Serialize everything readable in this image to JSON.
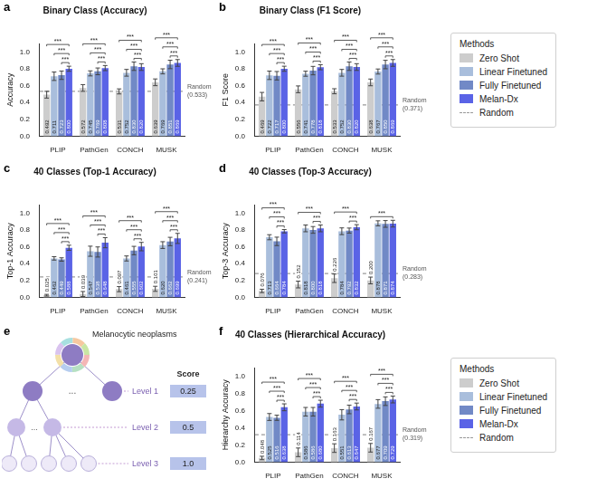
{
  "chart_data": [
    {
      "panel": "a",
      "type": "bar",
      "title": "Binary Class (Accuracy)",
      "y_label": "Accuracy",
      "categories": [
        "PLIP",
        "PathGen",
        "CONCH",
        "MUSK"
      ],
      "series": [
        {
          "name": "Zero Shot",
          "color": "#cdcdcd",
          "values": [
            0.492,
            0.572,
            0.531,
            0.639
          ],
          "errors": [
            0.04,
            0.04,
            0.03,
            0.04
          ],
          "value_labels": [
            "0.492",
            "0.572",
            "0.531",
            "0.639"
          ]
        },
        {
          "name": "Linear Finetuned",
          "color": "#a9bedc",
          "values": [
            0.711,
            0.745,
            0.752,
            0.769
          ],
          "errors": [
            0.05,
            0.03,
            0.04,
            0.03
          ],
          "value_labels": [
            "0.711",
            "0.745",
            "0.752",
            "0.769"
          ]
        },
        {
          "name": "Fully Finetuned",
          "color": "#7189c6",
          "values": [
            0.723,
            0.769,
            0.83,
            0.851
          ],
          "errors": [
            0.05,
            0.04,
            0.05,
            0.05
          ],
          "value_labels": [
            "0.723",
            "0.769",
            "0.830",
            "0.851"
          ]
        },
        {
          "name": "Melan-Dx",
          "color": "#5a63e6",
          "values": [
            0.8,
            0.808,
            0.82,
            0.869
          ],
          "errors": [
            0.03,
            0.03,
            0.04,
            0.04
          ],
          "value_labels": [
            "0.800",
            "0.808",
            "0.820",
            "0.869"
          ]
        }
      ],
      "reference_line": {
        "name": "Random",
        "value": 0.533,
        "label": "(0.533)",
        "color": "#999999",
        "line_style": "dashed"
      },
      "significance": {
        "label": "***",
        "brackets": {
          "PLIP": [
            [
              "Zero Shot",
              "Melan-Dx"
            ],
            [
              "Linear Finetuned",
              "Melan-Dx"
            ],
            [
              "Fully Finetuned",
              "Melan-Dx"
            ]
          ],
          "PathGen": [
            [
              "Zero Shot",
              "Melan-Dx"
            ],
            [
              "Linear Finetuned",
              "Melan-Dx"
            ],
            [
              "Fully Finetuned",
              "Melan-Dx"
            ]
          ],
          "CONCH": [
            [
              "Zero Shot",
              "Melan-Dx"
            ],
            [
              "Linear Finetuned",
              "Melan-Dx"
            ],
            [
              "Fully Finetuned",
              "Melan-Dx"
            ]
          ],
          "MUSK": [
            [
              "Zero Shot",
              "Melan-Dx"
            ],
            [
              "Linear Finetuned",
              "Melan-Dx"
            ],
            [
              "Fully Finetuned",
              "Melan-Dx"
            ]
          ]
        }
      },
      "ylim": [
        0,
        1.1
      ],
      "yticks": [
        {
          "value": 0,
          "label": "0.0"
        },
        {
          "value": 0.2,
          "label": "0.2"
        },
        {
          "value": 0.4,
          "label": "0.4"
        },
        {
          "value": 0.6,
          "label": "0.6"
        },
        {
          "value": 0.8,
          "label": "0.8"
        },
        {
          "value": 1,
          "label": "1.0"
        }
      ],
      "grid": false,
      "data_labels": true
    },
    {
      "panel": "b",
      "type": "bar",
      "title": "Binary Class (F1 Score)",
      "y_label": "F1 Score",
      "categories": [
        "PLIP",
        "PathGen",
        "CONCH",
        "MUSK"
      ],
      "series": [
        {
          "name": "Zero Shot",
          "color": "#cdcdcd",
          "values": [
            0.469,
            0.556,
            0.533,
            0.638
          ],
          "errors": [
            0.05,
            0.04,
            0.03,
            0.04
          ],
          "value_labels": [
            "0.469",
            "0.556",
            "0.533",
            "0.638"
          ]
        },
        {
          "name": "Linear Finetuned",
          "color": "#a9bedc",
          "values": [
            0.722,
            0.741,
            0.752,
            0.767
          ],
          "errors": [
            0.05,
            0.03,
            0.04,
            0.03
          ],
          "value_labels": [
            "0.722",
            "0.741",
            "0.752",
            "0.767"
          ]
        },
        {
          "name": "Fully Finetuned",
          "color": "#7189c6",
          "values": [
            0.717,
            0.778,
            0.83,
            0.85
          ],
          "errors": [
            0.05,
            0.05,
            0.05,
            0.05
          ],
          "value_labels": [
            "0.717",
            "0.778",
            "0.830",
            "0.850"
          ]
        },
        {
          "name": "Melan-Dx",
          "color": "#5a63e6",
          "values": [
            0.8,
            0.818,
            0.82,
            0.869
          ],
          "errors": [
            0.03,
            0.03,
            0.04,
            0.04
          ],
          "value_labels": [
            "0.800",
            "0.818",
            "0.820",
            "0.869"
          ]
        }
      ],
      "reference_line": {
        "name": "Random",
        "value": 0.371,
        "label": "(0.371)",
        "color": "#999999",
        "line_style": "dashed"
      },
      "significance": {
        "label": "***",
        "brackets": {
          "PLIP": [
            [
              "Zero Shot",
              "Melan-Dx"
            ],
            [
              "Linear Finetuned",
              "Melan-Dx"
            ],
            [
              "Fully Finetuned",
              "Melan-Dx"
            ]
          ],
          "PathGen": [
            [
              "Zero Shot",
              "Melan-Dx"
            ],
            [
              "Linear Finetuned",
              "Melan-Dx"
            ],
            [
              "Fully Finetuned",
              "Melan-Dx"
            ]
          ],
          "CONCH": [
            [
              "Zero Shot",
              "Melan-Dx"
            ],
            [
              "Linear Finetuned",
              "Melan-Dx"
            ],
            [
              "Fully Finetuned",
              "Melan-Dx"
            ]
          ],
          "MUSK": [
            [
              "Zero Shot",
              "Melan-Dx"
            ],
            [
              "Linear Finetuned",
              "Melan-Dx"
            ],
            [
              "Fully Finetuned",
              "Melan-Dx"
            ]
          ]
        }
      },
      "ylim": [
        0,
        1.1
      ],
      "yticks": [
        {
          "value": 0,
          "label": "0.0"
        },
        {
          "value": 0.2,
          "label": "0.2"
        },
        {
          "value": 0.4,
          "label": "0.4"
        },
        {
          "value": 0.6,
          "label": "0.6"
        },
        {
          "value": 0.8,
          "label": "0.8"
        },
        {
          "value": 1,
          "label": "1.0"
        }
      ],
      "grid": false,
      "data_labels": true,
      "legend": "right",
      "legend_title": "Methods"
    },
    {
      "panel": "c",
      "type": "bar",
      "title": "40 Classes (Top-1 Accuracy)",
      "y_label": "Top-1 Accuracy",
      "categories": [
        "PLIP",
        "PathGen",
        "CONCH",
        "MUSK"
      ],
      "series": [
        {
          "name": "Zero Shot",
          "color": "#cdcdcd",
          "values": [
            0.025,
            0.039,
            0.097,
            0.101
          ],
          "errors": [
            0.01,
            0.03,
            0.03,
            0.03
          ],
          "value_labels": [
            "0.025",
            "0.039",
            "0.097",
            "0.101"
          ]
        },
        {
          "name": "Linear Finetuned",
          "color": "#a9bedc",
          "values": [
            0.462,
            0.547,
            0.461,
            0.62
          ],
          "errors": [
            0.02,
            0.06,
            0.03,
            0.04
          ],
          "value_labels": [
            "0.462",
            "0.547",
            "0.461",
            "0.620"
          ]
        },
        {
          "name": "Fully Finetuned",
          "color": "#7189c6",
          "values": [
            0.449,
            0.538,
            0.555,
            0.662
          ],
          "errors": [
            0.02,
            0.06,
            0.05,
            0.05
          ],
          "value_labels": [
            "0.449",
            "0.538",
            "0.555",
            "0.662"
          ]
        },
        {
          "name": "Melan-Dx",
          "color": "#5a63e6",
          "values": [
            0.588,
            0.648,
            0.602,
            0.699
          ],
          "errors": [
            0.03,
            0.06,
            0.05,
            0.06
          ],
          "value_labels": [
            "0.588",
            "0.648",
            "0.602",
            "0.699"
          ]
        }
      ],
      "reference_line": {
        "name": "Random",
        "value": 0.241,
        "label": "(0.241)",
        "color": "#999999",
        "line_style": "dashed"
      },
      "significance": {
        "label": "***",
        "brackets": {
          "PLIP": [
            [
              "Zero Shot",
              "Melan-Dx"
            ],
            [
              "Linear Finetuned",
              "Melan-Dx"
            ],
            [
              "Fully Finetuned",
              "Melan-Dx"
            ]
          ],
          "PathGen": [
            [
              "Zero Shot",
              "Melan-Dx"
            ],
            [
              "Linear Finetuned",
              "Melan-Dx"
            ],
            [
              "Fully Finetuned",
              "Melan-Dx"
            ]
          ],
          "CONCH": [
            [
              "Zero Shot",
              "Melan-Dx"
            ],
            [
              "Linear Finetuned",
              "Melan-Dx"
            ],
            [
              "Fully Finetuned",
              "Melan-Dx"
            ]
          ],
          "MUSK": [
            [
              "Zero Shot",
              "Melan-Dx"
            ],
            [
              "Linear Finetuned",
              "Melan-Dx"
            ],
            [
              "Fully Finetuned",
              "Melan-Dx"
            ]
          ]
        }
      },
      "ylim": [
        0,
        1.1
      ],
      "yticks": [
        {
          "value": 0,
          "label": "0.0"
        },
        {
          "value": 0.2,
          "label": "0.2"
        },
        {
          "value": 0.4,
          "label": "0.4"
        },
        {
          "value": 0.6,
          "label": "0.6"
        },
        {
          "value": 0.8,
          "label": "0.8"
        },
        {
          "value": 1,
          "label": "1.0"
        }
      ],
      "grid": false,
      "data_labels": true
    },
    {
      "panel": "d",
      "type": "bar",
      "title": "40 Classes (Top-3 Accuracy)",
      "y_label": "Top-3 Accuracy",
      "categories": [
        "PLIP",
        "PathGen",
        "CONCH",
        "MUSK"
      ],
      "series": [
        {
          "name": "Zero Shot",
          "color": "#cdcdcd",
          "values": [
            0.076,
            0.152,
            0.226,
            0.2
          ],
          "errors": [
            0.02,
            0.04,
            0.05,
            0.04
          ],
          "value_labels": [
            "0.076",
            "0.152",
            "0.226",
            "0.200"
          ]
        },
        {
          "name": "Linear Finetuned",
          "color": "#a9bedc",
          "values": [
            0.713,
            0.818,
            0.784,
            0.878
          ],
          "errors": [
            0.03,
            0.04,
            0.04,
            0.03
          ],
          "value_labels": [
            "0.713",
            "0.818",
            "0.784",
            "0.878"
          ]
        },
        {
          "name": "Fully Finetuned",
          "color": "#7189c6",
          "values": [
            0.664,
            0.8,
            0.792,
            0.871
          ],
          "errors": [
            0.05,
            0.04,
            0.03,
            0.04
          ],
          "value_labels": [
            "0.664",
            "0.800",
            "0.792",
            "0.871"
          ]
        },
        {
          "name": "Melan-Dx",
          "color": "#5a63e6",
          "values": [
            0.784,
            0.818,
            0.832,
            0.874
          ],
          "errors": [
            0.02,
            0.04,
            0.03,
            0.04
          ],
          "value_labels": [
            "0.784",
            "0.818",
            "0.832",
            "0.874"
          ]
        }
      ],
      "reference_line": {
        "name": "Random",
        "value": 0.283,
        "label": "(0.283)",
        "color": "#999999",
        "line_style": "dashed"
      },
      "significance": {
        "label": "***",
        "brackets": {
          "PLIP": [
            [
              "Zero Shot",
              "Melan-Dx"
            ],
            [
              "Linear Finetuned",
              "Melan-Dx"
            ],
            [
              "Fully Finetuned",
              "Melan-Dx"
            ]
          ],
          "PathGen": [
            [
              "Zero Shot",
              "Melan-Dx"
            ],
            [
              "Fully Finetuned",
              "Melan-Dx"
            ]
          ],
          "CONCH": [
            [
              "Zero Shot",
              "Melan-Dx"
            ],
            [
              "Fully Finetuned",
              "Melan-Dx"
            ]
          ],
          "MUSK": [
            [
              "Zero Shot",
              "Melan-Dx"
            ]
          ]
        }
      },
      "ylim": [
        0,
        1.1
      ],
      "yticks": [
        {
          "value": 0,
          "label": "0.0"
        },
        {
          "value": 0.2,
          "label": "0.2"
        },
        {
          "value": 0.4,
          "label": "0.4"
        },
        {
          "value": 0.6,
          "label": "0.6"
        },
        {
          "value": 0.8,
          "label": "0.8"
        },
        {
          "value": 1,
          "label": "1.0"
        }
      ],
      "grid": false,
      "data_labels": true
    },
    {
      "panel": "f",
      "type": "bar",
      "title": "40 Classes (Hierarchical Accuracy)",
      "y_label": "Hierarchy Accuracy",
      "categories": [
        "PLIP",
        "PathGen",
        "CONCH",
        "MUSK"
      ],
      "series": [
        {
          "name": "Zero Shot",
          "color": "#cdcdcd",
          "values": [
            0.048,
            0.114,
            0.163,
            0.167
          ],
          "errors": [
            0.02,
            0.05,
            0.05,
            0.05
          ],
          "value_labels": [
            "0.048",
            "0.114",
            "0.163",
            "0.167"
          ]
        },
        {
          "name": "Linear Finetuned",
          "color": "#a9bedc",
          "values": [
            0.525,
            0.586,
            0.551,
            0.677
          ],
          "errors": [
            0.04,
            0.05,
            0.06,
            0.05
          ],
          "value_labels": [
            "0.525",
            "0.586",
            "0.551",
            "0.677"
          ]
        },
        {
          "name": "Fully Finetuned",
          "color": "#7189c6",
          "values": [
            0.516,
            0.586,
            0.613,
            0.709
          ],
          "errors": [
            0.03,
            0.05,
            0.05,
            0.05
          ],
          "value_labels": [
            "0.516",
            "0.586",
            "0.613",
            "0.709"
          ]
        },
        {
          "name": "Melan-Dx",
          "color": "#5a63e6",
          "values": [
            0.638,
            0.68,
            0.647,
            0.729
          ],
          "errors": [
            0.04,
            0.04,
            0.04,
            0.04
          ],
          "value_labels": [
            "0.638",
            "0.680",
            "0.647",
            "0.729"
          ]
        }
      ],
      "reference_line": {
        "name": "Random",
        "value": 0.319,
        "label": "(0.319)",
        "color": "#999999",
        "line_style": "dashed"
      },
      "significance": {
        "label": "***",
        "brackets": {
          "PLIP": [
            [
              "Zero Shot",
              "Melan-Dx"
            ],
            [
              "Linear Finetuned",
              "Melan-Dx"
            ],
            [
              "Fully Finetuned",
              "Melan-Dx"
            ]
          ],
          "PathGen": [
            [
              "Zero Shot",
              "Melan-Dx"
            ],
            [
              "Linear Finetuned",
              "Melan-Dx"
            ],
            [
              "Fully Finetuned",
              "Melan-Dx"
            ]
          ],
          "CONCH": [
            [
              "Zero Shot",
              "Melan-Dx"
            ],
            [
              "Linear Finetuned",
              "Melan-Dx"
            ],
            [
              "Fully Finetuned",
              "Melan-Dx"
            ]
          ],
          "MUSK": [
            [
              "Zero Shot",
              "Melan-Dx"
            ],
            [
              "Linear Finetuned",
              "Melan-Dx"
            ],
            [
              "Fully Finetuned",
              "Melan-Dx"
            ]
          ]
        }
      },
      "ylim": [
        0,
        1.1
      ],
      "yticks": [
        {
          "value": 0,
          "label": "0.0"
        },
        {
          "value": 0.2,
          "label": "0.2"
        },
        {
          "value": 0.4,
          "label": "0.4"
        },
        {
          "value": 0.6,
          "label": "0.6"
        },
        {
          "value": 0.8,
          "label": "0.8"
        },
        {
          "value": 1,
          "label": "1.0"
        }
      ],
      "grid": false,
      "data_labels": true,
      "legend": "right",
      "legend_title": "Methods"
    }
  ],
  "diagram": {
    "panel": "e",
    "root": "Melanocytic neoplasms",
    "gap_mark": "...",
    "score_header": "Score",
    "levels": [
      {
        "name": "Level 1",
        "score": 0.25,
        "score_label": "0.25"
      },
      {
        "name": "Level 2",
        "score": 0.5,
        "score_label": "0.5"
      },
      {
        "name": "Level 3",
        "score": 1,
        "score_label": "1.0"
      }
    ]
  }
}
